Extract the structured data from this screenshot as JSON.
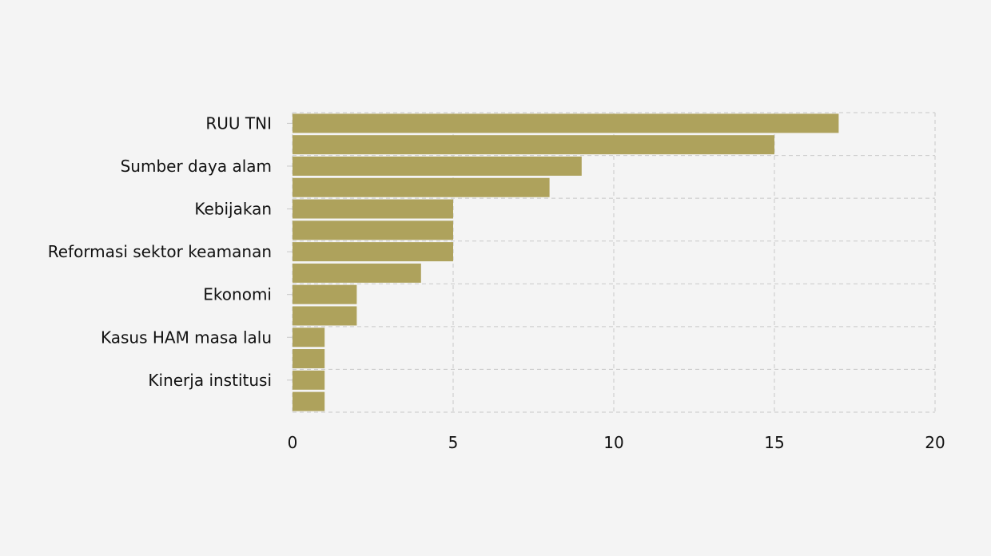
{
  "chart_data": {
    "type": "bar",
    "orientation": "horizontal",
    "categories": [
      "RUU TNI",
      "",
      "Sumber daya alam",
      "",
      "Kebijakan",
      "",
      "Reformasi sektor keamanan",
      "",
      "Ekonomi",
      "",
      "Kasus HAM masa lalu",
      "",
      "Kinerja institusi",
      ""
    ],
    "values": [
      17,
      15,
      9,
      8,
      5,
      5,
      5,
      4,
      2,
      2,
      1,
      1,
      1,
      1
    ],
    "xlim": [
      0,
      20
    ],
    "x_ticks": [
      0,
      5,
      10,
      15,
      20
    ],
    "title": "",
    "xlabel": "",
    "ylabel": "",
    "grid": true,
    "legend": "none",
    "bar_color": "#aea25c",
    "grid_color": "#c8c8c8",
    "background": "#f4f4f4"
  }
}
